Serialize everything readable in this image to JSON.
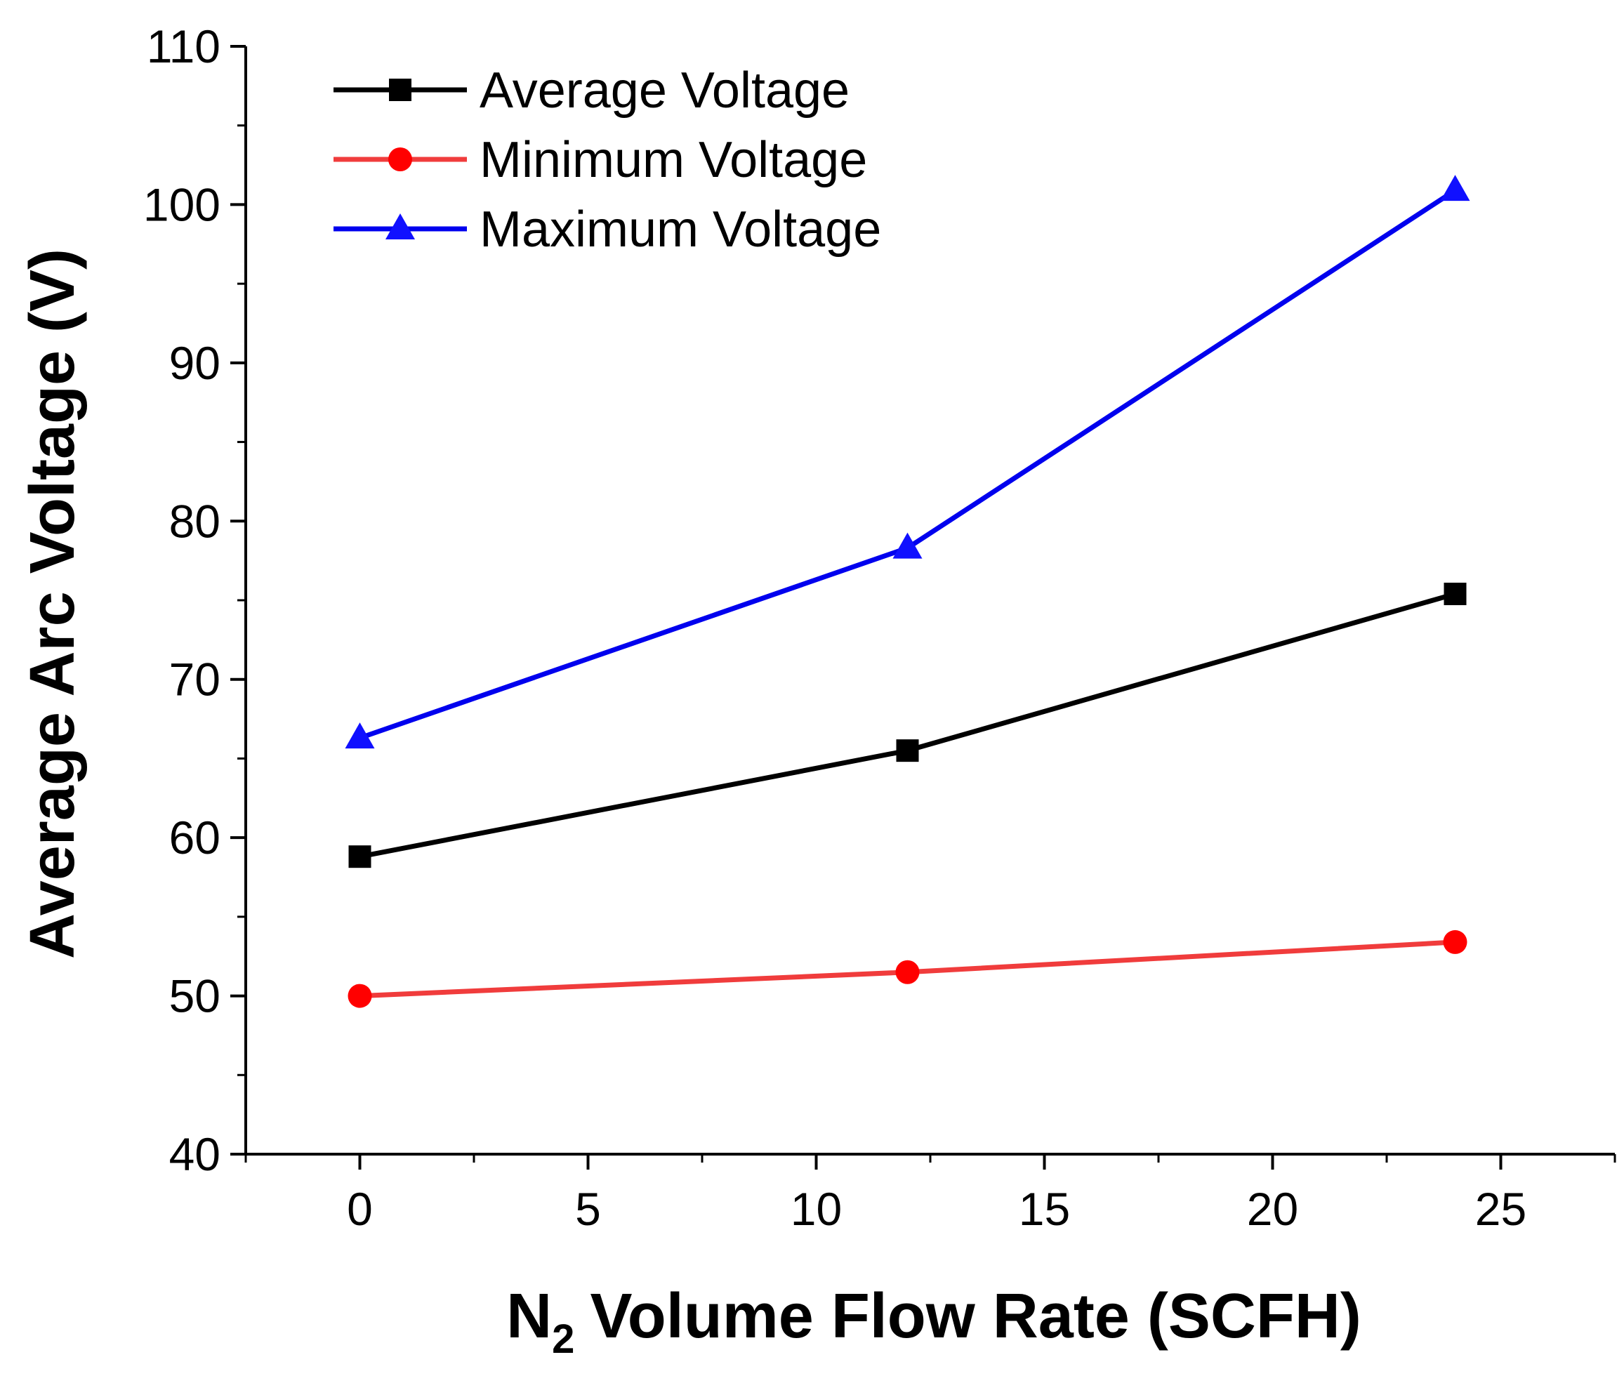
{
  "chart_data": {
    "type": "line",
    "xlabel": "Volume Flow Rate (SCFH)",
    "xlabel_prefix": "N",
    "xlabel_subscript": "2",
    "ylabel": "Average Arc Voltage (V)",
    "xlim": [
      -2.5,
      27.5
    ],
    "ylim": [
      40,
      110
    ],
    "x_ticks": [
      "0",
      "5",
      "10",
      "15",
      "20",
      "25"
    ],
    "y_ticks": [
      "40",
      "50",
      "60",
      "70",
      "80",
      "90",
      "100",
      "110"
    ],
    "legend_position": "top-left",
    "grid": false,
    "x": [
      0,
      12,
      24
    ],
    "series": [
      {
        "name": "Average Voltage",
        "values": [
          58.8,
          65.5,
          75.4
        ],
        "color": "#000000",
        "marker": "square"
      },
      {
        "name": "Minimum Voltage",
        "values": [
          50.0,
          51.5,
          53.4
        ],
        "color": "#f03c3c",
        "marker_color": "#ff0000",
        "marker": "circle"
      },
      {
        "name": "Maximum Voltage",
        "values": [
          66.3,
          78.3,
          100.9
        ],
        "color": "#0000ee",
        "marker_color": "#1010ff",
        "marker": "triangle"
      }
    ]
  }
}
